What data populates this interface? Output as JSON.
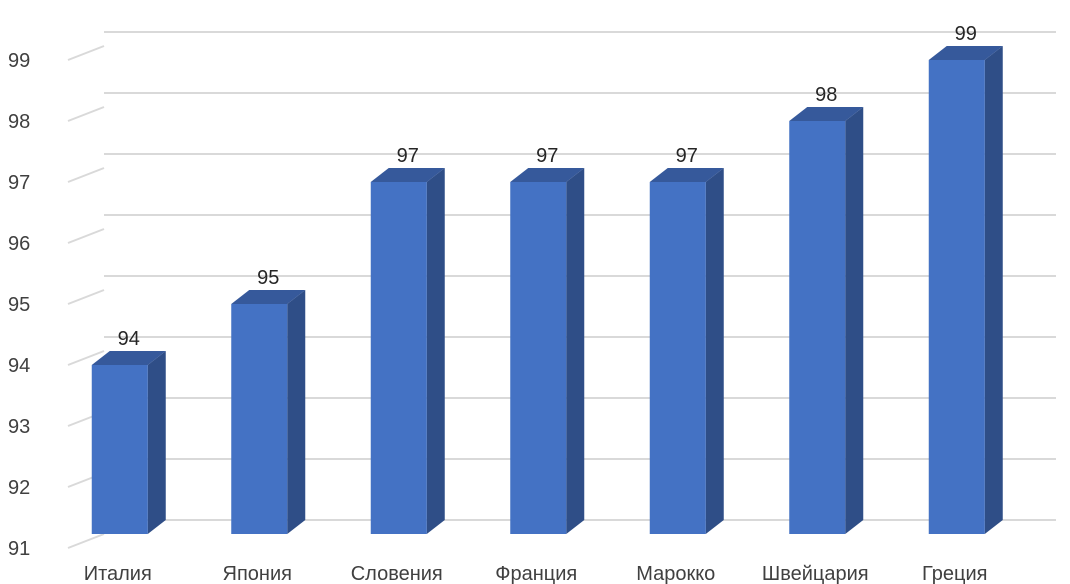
{
  "chart_data": {
    "type": "bar",
    "style": "3d-column",
    "categories": [
      "Италия",
      "Япония",
      "Словения",
      "Франция",
      "Марокко",
      "Швейцария",
      "Греция"
    ],
    "values": [
      94,
      95,
      97,
      97,
      97,
      98,
      99
    ],
    "ylim": [
      91,
      99
    ],
    "yticks": [
      "91",
      "92",
      "93",
      "94",
      "95",
      "96",
      "97",
      "98",
      "99"
    ],
    "data_labels": [
      "94",
      "95",
      "97",
      "97",
      "97",
      "98",
      "99"
    ],
    "title": "",
    "xlabel": "",
    "ylabel": "",
    "grid": true,
    "legend": "none",
    "colors": {
      "bar_front": "#4472C4",
      "bar_side": "#2F4E87",
      "bar_top": "#36599B",
      "gridline": "#D9D9D9",
      "text": "#404040"
    }
  }
}
